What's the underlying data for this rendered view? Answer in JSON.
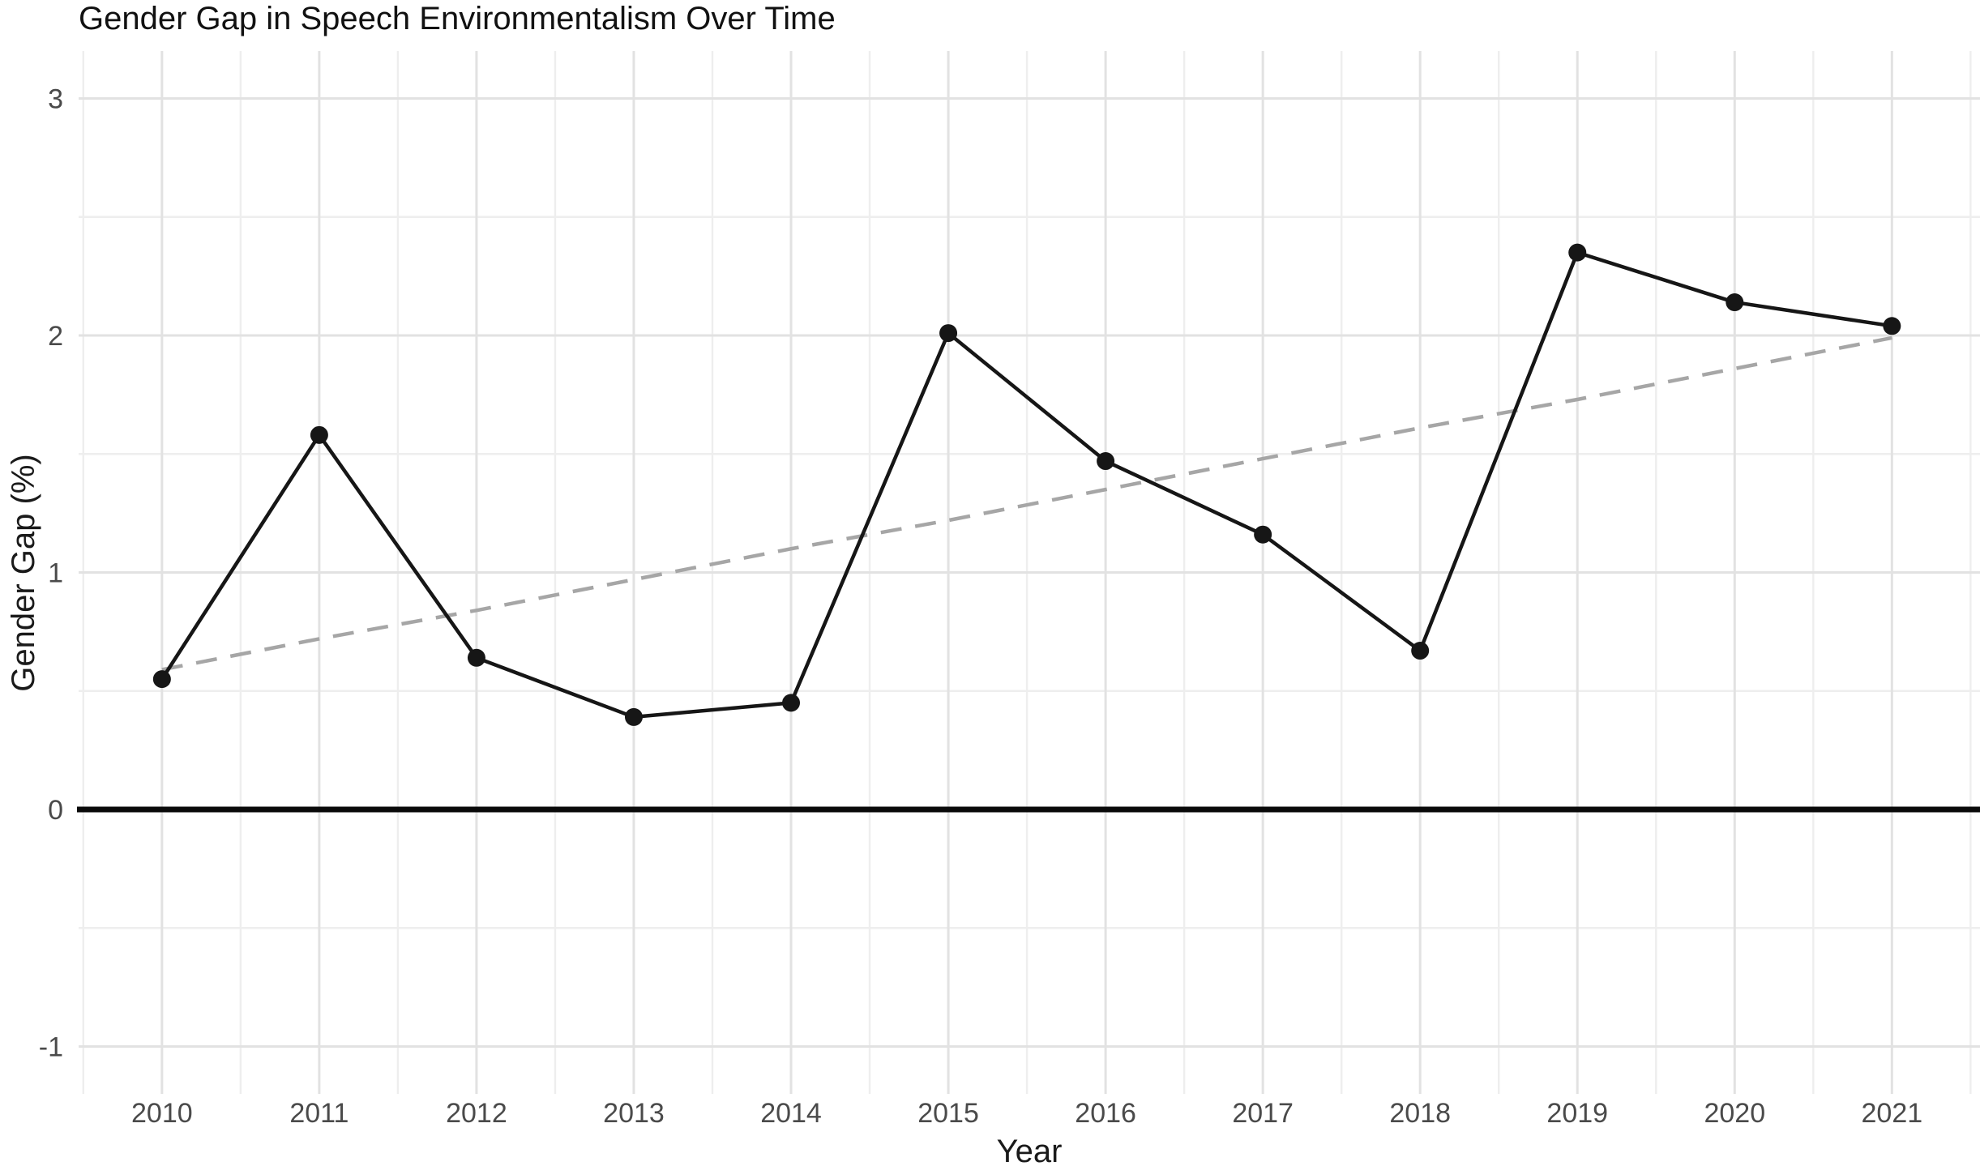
{
  "chart_data": {
    "type": "line",
    "title": "Gender Gap in Speech Environmentalism Over Time",
    "xlabel": "Year",
    "ylabel": "Gender Gap (%)",
    "x": [
      2010,
      2011,
      2012,
      2013,
      2014,
      2015,
      2016,
      2017,
      2018,
      2019,
      2020,
      2021
    ],
    "series": [
      {
        "name": "gender-gap",
        "style": "solid-line-with-points",
        "color": "#161616",
        "values": [
          0.55,
          1.58,
          0.64,
          0.39,
          0.45,
          2.01,
          1.47,
          1.16,
          0.67,
          2.35,
          2.14,
          2.04
        ]
      },
      {
        "name": "linear-trend",
        "style": "dashed-line",
        "color": "#a6a6a6",
        "values": [
          0.59,
          0.72,
          0.84,
          0.97,
          1.1,
          1.22,
          1.35,
          1.48,
          1.61,
          1.73,
          1.86,
          1.99
        ]
      }
    ],
    "reference_line": {
      "y": 0,
      "color": "#0a0a0a"
    },
    "y_ticks": [
      -1,
      0,
      1,
      2,
      3
    ],
    "y_tick_labels": [
      "-1",
      "0",
      "1",
      "2",
      "3"
    ],
    "x_tick_labels": [
      "2010",
      "2011",
      "2012",
      "2013",
      "2014",
      "2015",
      "2016",
      "2017",
      "2018",
      "2019",
      "2020",
      "2021"
    ],
    "xlim": [
      2009.47,
      2021.56
    ],
    "ylim": [
      -1.2,
      3.2
    ],
    "grid": {
      "on": true,
      "major_color": "#e2e2e2",
      "minor_color": "#eeeeee",
      "minor_step_x": 0.5,
      "minor_step_y": 0.5
    },
    "legend_position": "none",
    "background": "#ffffff"
  }
}
